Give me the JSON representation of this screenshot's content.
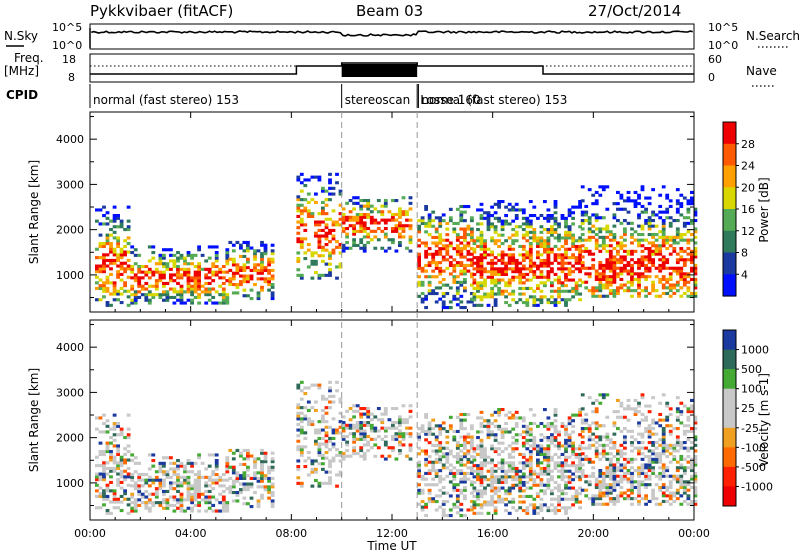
{
  "header": {
    "station": "Pykkvibaer (fitACF)",
    "beam": "Beam 03",
    "date": "27/Oct/2014"
  },
  "strip": {
    "nsky_label": "N.Sky",
    "nsky_ticks": [
      "10^5",
      "10^0"
    ],
    "nsearch_label": "N.Search",
    "nsearch_ticks": [
      "10^5",
      "10^0"
    ],
    "freq_label": "Freq.",
    "freq_unit": "[MHz]",
    "freq_ticks": [
      "18",
      "8"
    ],
    "nave_label": "Nave",
    "nave_ticks": [
      "60",
      "0"
    ],
    "cpid_label": "CPID"
  },
  "cpid_segments": [
    {
      "label": "normal (fast stereo) 153",
      "start_hour": 0,
      "end_hour": 10.0
    },
    {
      "label": "stereoscan",
      "start_hour": 10.0,
      "end_hour": 13.0
    },
    {
      "label": "Losse 160",
      "start_hour": 13.0,
      "end_hour": 13.05
    },
    {
      "label": "normal (fast stereo) 153",
      "start_hour": 13.05,
      "end_hour": 24
    }
  ],
  "power_colorbar": {
    "label": "Power [dB]",
    "ticks": [
      "28",
      "24",
      "20",
      "16",
      "12",
      "8",
      "4"
    ],
    "colors": [
      "#ee0000",
      "#ff5a00",
      "#ffa000",
      "#d8d800",
      "#55aa55",
      "#2e7a5a",
      "#1a3aa0",
      "#0010ff"
    ]
  },
  "velocity_colorbar": {
    "label": "Velocity [m s-1]",
    "ticks": [
      "1000",
      "500",
      "100",
      "25",
      "-25",
      "-100",
      "-500",
      "-1000"
    ],
    "colors": [
      "#1a3aa0",
      "#2e6a5a",
      "#44aa33",
      "#c8c8c8",
      "#c8c8c8",
      "#f0a020",
      "#ff6a00",
      "#ff2000",
      "#ee0000"
    ]
  },
  "chart_data": {
    "type": "heatmap",
    "title": "Pykkvibaer (fitACF)  Beam 03  27/Oct/2014",
    "xlabel": "Time UT",
    "x_ticks": [
      "00:00",
      "04:00",
      "08:00",
      "12:00",
      "16:00",
      "20:00",
      "00:00"
    ],
    "xlim_hours": [
      0,
      24
    ],
    "panels": [
      {
        "name": "Power",
        "ylabel": "Slant Range [km]",
        "y_ticks": [
          "4000",
          "3000",
          "2000",
          "1000"
        ],
        "ylim_km": [
          180,
          4600
        ],
        "colorbar_unit": "dB",
        "colorbar_ticks": [
          28,
          24,
          20,
          16,
          12,
          8,
          4
        ]
      },
      {
        "name": "Velocity",
        "ylabel": "Slant Range [km]",
        "y_ticks": [
          "4000",
          "3000",
          "2000",
          "1000"
        ],
        "ylim_km": [
          180,
          4600
        ],
        "colorbar_unit": "m s-1",
        "colorbar_ticks": [
          1000,
          500,
          100,
          25,
          -25,
          -100,
          -500,
          -1000
        ]
      }
    ],
    "scatter_regions": [
      {
        "t0": 0.2,
        "t1": 1.6,
        "r0": 300,
        "r1": 2500,
        "peak": 1200,
        "density": 0.55
      },
      {
        "t0": 1.6,
        "t1": 5.5,
        "r0": 350,
        "r1": 1600,
        "peak": 900,
        "density": 0.65
      },
      {
        "t0": 5.5,
        "t1": 7.2,
        "r0": 450,
        "r1": 1700,
        "peak": 1000,
        "density": 0.6
      },
      {
        "t0": 8.2,
        "t1": 9.9,
        "r0": 900,
        "r1": 3200,
        "peak": 1900,
        "density": 0.45
      },
      {
        "t0": 10.0,
        "t1": 12.8,
        "r0": 1500,
        "r1": 2700,
        "peak": 2100,
        "density": 0.55
      },
      {
        "t0": 13.0,
        "t1": 15.2,
        "r0": 250,
        "r1": 2500,
        "peak": 1400,
        "density": 0.55
      },
      {
        "t0": 15.2,
        "t1": 19.5,
        "r0": 300,
        "r1": 2600,
        "peak": 1200,
        "density": 0.65
      },
      {
        "t0": 19.5,
        "t1": 24.0,
        "r0": 500,
        "r1": 3000,
        "peak": 1200,
        "density": 0.6
      }
    ]
  }
}
